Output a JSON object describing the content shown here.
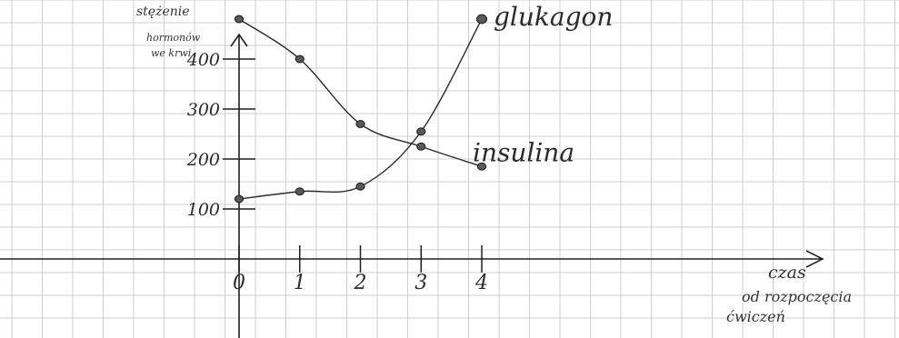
{
  "chart_data": {
    "type": "line",
    "title": "",
    "xlabel_lines": [
      "czas",
      "od rozpoczęcia",
      "ćwiczeń"
    ],
    "ylabel_lines": [
      "stężenie",
      "hormonów",
      "we krwi"
    ],
    "x_tick_labels": [
      "0",
      "1",
      "2",
      "3",
      "4"
    ],
    "y_tick_labels": [
      "100",
      "200",
      "300",
      "400"
    ],
    "x": [
      0,
      1,
      2,
      3,
      4
    ],
    "xlim": [
      0,
      4
    ],
    "ylim": [
      0,
      500
    ],
    "grid": true,
    "series": [
      {
        "name": "glukagon",
        "values": [
          120,
          135,
          145,
          255,
          480
        ],
        "color": "#2b2b2b"
      },
      {
        "name": "insulina",
        "values": [
          480,
          400,
          270,
          225,
          185
        ],
        "color": "#2b2b2b"
      }
    ]
  }
}
